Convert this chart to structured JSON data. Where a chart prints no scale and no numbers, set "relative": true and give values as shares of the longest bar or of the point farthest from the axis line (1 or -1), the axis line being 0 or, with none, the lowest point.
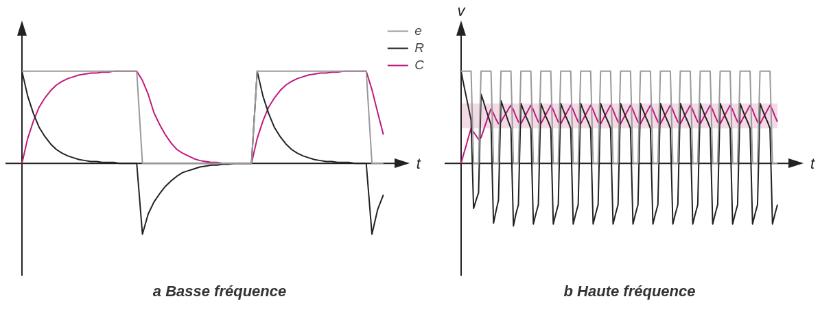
{
  "chart_data": [
    {
      "type": "line",
      "title": "a Basse fréquence",
      "xlabel": "t",
      "relative": true,
      "tick_labels": false,
      "legend": "top right",
      "marker": "none",
      "line_style": "solid",
      "categories": [
        null,
        null,
        null,
        null,
        null,
        null,
        null,
        null,
        null,
        null,
        null,
        null,
        null,
        null,
        null,
        null,
        null,
        null,
        null,
        null,
        null,
        null,
        null,
        null,
        null,
        null,
        null,
        null,
        null,
        null,
        null,
        null,
        null,
        null,
        null,
        null,
        null,
        null,
        null,
        null,
        null,
        null,
        null,
        null,
        null,
        null,
        null,
        null,
        null,
        null,
        null,
        null,
        null,
        null,
        null,
        null,
        null,
        null,
        null,
        null,
        null,
        null,
        null,
        null
      ],
      "series": [
        {
          "name": "e",
          "color": "#9a9a9a",
          "values": [
            1,
            1,
            1,
            1,
            1,
            1,
            1,
            1,
            1,
            1,
            1,
            1,
            1,
            1,
            1,
            1,
            1,
            1,
            1,
            1,
            1,
            0,
            0,
            0,
            0,
            0,
            0,
            0,
            0,
            0,
            0,
            0,
            0,
            0,
            0,
            0,
            0,
            0,
            0,
            0,
            0,
            1,
            1,
            1,
            1,
            1,
            1,
            1,
            1,
            1,
            1,
            1,
            1,
            1,
            1,
            1,
            1,
            1,
            1,
            1,
            1,
            0,
            0,
            0
          ]
        },
        {
          "name": "R",
          "color": "#222222",
          "values": [
            1,
            0.73,
            0.54,
            0.39,
            0.29,
            0.21,
            0.15,
            0.11,
            0.08,
            0.06,
            0.04,
            0.03,
            0.02,
            0.02,
            0.01,
            0.01,
            0.01,
            0,
            0,
            0,
            0,
            -0.77,
            -0.55,
            -0.42,
            -0.33,
            -0.25,
            -0.19,
            -0.14,
            -0.1,
            -0.08,
            -0.06,
            -0.04,
            -0.03,
            -0.02,
            -0.02,
            -0.01,
            -0.01,
            0,
            0,
            0,
            0,
            1,
            0.73,
            0.54,
            0.39,
            0.29,
            0.21,
            0.15,
            0.11,
            0.08,
            0.06,
            0.04,
            0.03,
            0.02,
            0.02,
            0.01,
            0.01,
            0.01,
            0,
            0,
            0,
            -0.77,
            -0.5,
            -0.34
          ]
        },
        {
          "name": "C",
          "color": "#c0197a",
          "values": [
            0,
            0.27,
            0.46,
            0.61,
            0.71,
            0.79,
            0.85,
            0.89,
            0.92,
            0.94,
            0.96,
            0.97,
            0.98,
            0.98,
            0.99,
            0.99,
            1,
            1,
            1,
            1,
            1,
            0.9,
            0.75,
            0.55,
            0.42,
            0.31,
            0.22,
            0.15,
            0.11,
            0.08,
            0.05,
            0.03,
            0.02,
            0.01,
            0.01,
            0,
            0,
            0,
            0,
            0,
            0,
            0.27,
            0.46,
            0.61,
            0.71,
            0.79,
            0.85,
            0.89,
            0.92,
            0.94,
            0.96,
            0.97,
            0.98,
            0.98,
            0.99,
            0.99,
            1,
            1,
            1,
            1,
            1,
            0.8,
            0.55,
            0.31
          ]
        }
      ]
    },
    {
      "type": "line",
      "title": "b Haute fréquence",
      "xlabel": "t",
      "ylabel": "v",
      "relative": true,
      "tick_labels": false,
      "marker": "none",
      "line_style": "solid",
      "bands": [
        {
          "axis": "y",
          "from": 0.38,
          "to": 0.65,
          "color": "#f3dbe6"
        }
      ],
      "categories": [
        null,
        null,
        null,
        null,
        null,
        null,
        null,
        null,
        null,
        null,
        null,
        null,
        null,
        null,
        null,
        null,
        null,
        null,
        null,
        null,
        null,
        null,
        null,
        null,
        null,
        null,
        null,
        null,
        null,
        null,
        null,
        null,
        null,
        null,
        null,
        null,
        null,
        null,
        null,
        null,
        null,
        null,
        null,
        null,
        null,
        null,
        null,
        null,
        null,
        null,
        null,
        null,
        null,
        null,
        null,
        null,
        null,
        null,
        null,
        null,
        null,
        null,
        null,
        null,
        null,
        null,
        null,
        null,
        null,
        null,
        null,
        null,
        null,
        null,
        null,
        null,
        null,
        null,
        null,
        null,
        null,
        null,
        null,
        null,
        null,
        null,
        null,
        null,
        null,
        null,
        null,
        null,
        null,
        null,
        null,
        null,
        null,
        null,
        null,
        null,
        null,
        null,
        null,
        null,
        null,
        null,
        null,
        null,
        null,
        null,
        null,
        null,
        null,
        null,
        null,
        null,
        null,
        null,
        null,
        null,
        null,
        null,
        null,
        null,
        null,
        null,
        null,
        null
      ],
      "series": [
        {
          "color": "#9a9a9a",
          "values": [
            1,
            1,
            1,
            1,
            1,
            0,
            0,
            0,
            1,
            1,
            1,
            1,
            1,
            0,
            0,
            0,
            1,
            1,
            1,
            1,
            1,
            0,
            0,
            0,
            1,
            1,
            1,
            1,
            1,
            0,
            0,
            0,
            1,
            1,
            1,
            1,
            1,
            0,
            0,
            0,
            1,
            1,
            1,
            1,
            1,
            0,
            0,
            0,
            1,
            1,
            1,
            1,
            1,
            0,
            0,
            0,
            1,
            1,
            1,
            1,
            1,
            0,
            0,
            0,
            1,
            1,
            1,
            1,
            1,
            0,
            0,
            0,
            1,
            1,
            1,
            1,
            1,
            0,
            0,
            0,
            1,
            1,
            1,
            1,
            1,
            0,
            0,
            0,
            1,
            1,
            1,
            1,
            1,
            0,
            0,
            0,
            1,
            1,
            1,
            1,
            1,
            0,
            0,
            0,
            1,
            1,
            1,
            1,
            1,
            0,
            0,
            0,
            1,
            1,
            1,
            1,
            1,
            0,
            0,
            0,
            1,
            1,
            1,
            1,
            1,
            0,
            0,
            0
          ]
        },
        {
          "color": "#222222",
          "values": [
            1,
            0.86,
            0.73,
            0.6,
            0.47,
            -0.49,
            -0.4,
            -0.32,
            0.75,
            0.67,
            0.58,
            0.5,
            0.42,
            -0.65,
            -0.52,
            -0.4,
            0.68,
            0.6,
            0.53,
            0.45,
            0.38,
            -0.68,
            -0.55,
            -0.45,
            0.65,
            0.58,
            0.51,
            0.45,
            0.38,
            -0.66,
            -0.55,
            -0.45,
            0.65,
            0.58,
            0.51,
            0.45,
            0.38,
            -0.66,
            -0.55,
            -0.45,
            0.65,
            0.58,
            0.51,
            0.45,
            0.38,
            -0.66,
            -0.55,
            -0.45,
            0.65,
            0.58,
            0.51,
            0.45,
            0.38,
            -0.66,
            -0.55,
            -0.45,
            0.65,
            0.58,
            0.51,
            0.45,
            0.38,
            -0.66,
            -0.55,
            -0.45,
            0.65,
            0.58,
            0.51,
            0.45,
            0.38,
            -0.66,
            -0.55,
            -0.45,
            0.65,
            0.58,
            0.51,
            0.45,
            0.38,
            -0.66,
            -0.55,
            -0.45,
            0.65,
            0.58,
            0.51,
            0.45,
            0.38,
            -0.66,
            -0.55,
            -0.45,
            0.65,
            0.58,
            0.51,
            0.45,
            0.38,
            -0.66,
            -0.55,
            -0.45,
            0.65,
            0.58,
            0.51,
            0.45,
            0.38,
            -0.66,
            -0.55,
            -0.45,
            0.65,
            0.58,
            0.51,
            0.45,
            0.38,
            -0.66,
            -0.55,
            -0.45,
            0.65,
            0.58,
            0.51,
            0.45,
            0.38,
            -0.66,
            -0.55,
            -0.45,
            0.65,
            0.58,
            0.51,
            0.45,
            0.38,
            -0.66,
            -0.55,
            -0.45
          ]
        },
        {
          "color": "#c0197a",
          "values": [
            0,
            0.1,
            0.19,
            0.29,
            0.38,
            0.34,
            0.3,
            0.26,
            0.28,
            0.36,
            0.44,
            0.52,
            0.59,
            0.54,
            0.48,
            0.43,
            0.45,
            0.5,
            0.54,
            0.59,
            0.63,
            0.58,
            0.51,
            0.45,
            0.43,
            0.48,
            0.53,
            0.58,
            0.63,
            0.58,
            0.51,
            0.45,
            0.43,
            0.48,
            0.53,
            0.58,
            0.63,
            0.58,
            0.51,
            0.45,
            0.43,
            0.48,
            0.53,
            0.58,
            0.63,
            0.58,
            0.51,
            0.45,
            0.43,
            0.48,
            0.53,
            0.58,
            0.63,
            0.58,
            0.51,
            0.45,
            0.43,
            0.48,
            0.53,
            0.58,
            0.63,
            0.58,
            0.51,
            0.45,
            0.43,
            0.48,
            0.53,
            0.58,
            0.63,
            0.58,
            0.51,
            0.45,
            0.43,
            0.48,
            0.53,
            0.58,
            0.63,
            0.58,
            0.51,
            0.45,
            0.43,
            0.48,
            0.53,
            0.58,
            0.63,
            0.58,
            0.51,
            0.45,
            0.43,
            0.48,
            0.53,
            0.58,
            0.63,
            0.58,
            0.51,
            0.45,
            0.43,
            0.48,
            0.53,
            0.58,
            0.63,
            0.58,
            0.51,
            0.45,
            0.43,
            0.48,
            0.53,
            0.58,
            0.63,
            0.58,
            0.51,
            0.45,
            0.43,
            0.48,
            0.53,
            0.58,
            0.63,
            0.58,
            0.51,
            0.45,
            0.43,
            0.48,
            0.53,
            0.58,
            0.63,
            0.58,
            0.51,
            0.45
          ]
        }
      ]
    }
  ]
}
